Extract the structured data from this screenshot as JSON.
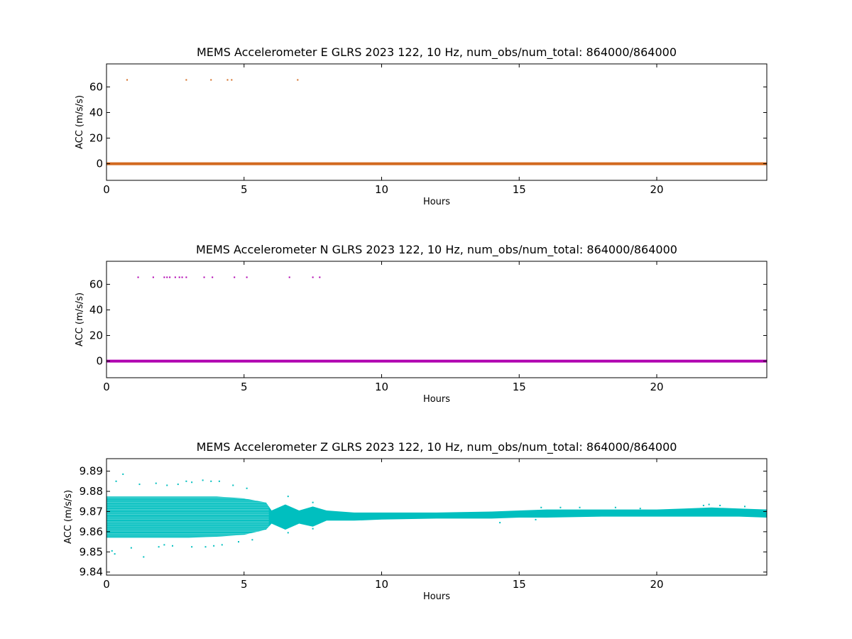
{
  "chart_data": [
    {
      "type": "scatter",
      "title": "MEMS Accelerometer E GLRS 2023 122, 10 Hz, num_obs/num_total: 864000/864000",
      "xlabel": "Hours",
      "ylabel": "ACC (m/s/s)",
      "xlim": [
        0,
        24
      ],
      "ylim": [
        -13,
        78
      ],
      "xticks": [
        0,
        5,
        10,
        15,
        20
      ],
      "yticks": [
        0,
        20,
        40,
        60
      ],
      "color": "#d2691e",
      "series": [
        {
          "baseline_value": 0.0,
          "baseline_x_range": [
            0,
            24
          ],
          "points": [
            [
              0.75,
              65.5
            ],
            [
              2.9,
              65.5
            ],
            [
              3.8,
              65.5
            ],
            [
              4.4,
              65.5
            ],
            [
              4.55,
              65.5
            ],
            [
              6.95,
              65.5
            ]
          ]
        }
      ]
    },
    {
      "type": "scatter",
      "title": "MEMS Accelerometer N GLRS 2023 122, 10 Hz, num_obs/num_total: 864000/864000",
      "xlabel": "Hours",
      "ylabel": "ACC (m/s/s)",
      "xlim": [
        0,
        24
      ],
      "ylim": [
        -13,
        78
      ],
      "xticks": [
        0,
        5,
        10,
        15,
        20
      ],
      "yticks": [
        0,
        20,
        40,
        60
      ],
      "color": "#b000b0",
      "series": [
        {
          "baseline_value": 0.0,
          "baseline_x_range": [
            0,
            24
          ],
          "points": [
            [
              1.15,
              65.5
            ],
            [
              1.7,
              65.5
            ],
            [
              2.1,
              65.5
            ],
            [
              2.2,
              65.5
            ],
            [
              2.3,
              65.5
            ],
            [
              2.5,
              65.5
            ],
            [
              2.65,
              65.5
            ],
            [
              2.75,
              65.5
            ],
            [
              2.9,
              65.5
            ],
            [
              3.55,
              65.5
            ],
            [
              3.85,
              65.5
            ],
            [
              4.65,
              65.5
            ],
            [
              5.1,
              65.5
            ],
            [
              6.65,
              65.5
            ],
            [
              7.5,
              65.5
            ],
            [
              7.75,
              65.5
            ]
          ]
        }
      ]
    },
    {
      "type": "scatter",
      "title": "MEMS Accelerometer Z GLRS 2023 122, 10 Hz, num_obs/num_total: 864000/864000",
      "xlabel": "Hours",
      "ylabel": "ACC (m/s/s)",
      "xlim": [
        0,
        24
      ],
      "ylim": [
        9.8385,
        9.8962
      ],
      "xticks": [
        0,
        5,
        10,
        15,
        20
      ],
      "xtick_labels": [
        "0",
        "5",
        "10",
        "15",
        "20"
      ],
      "yticks": [
        9.84,
        9.85,
        9.86,
        9.87,
        9.88,
        9.89
      ],
      "ytick_labels": [
        "9.84",
        "9.85",
        "9.86",
        "9.87",
        "9.88",
        "9.89"
      ],
      "color": "#00bfbf",
      "envelope": {
        "x": [
          0,
          1,
          2,
          3,
          4,
          5,
          5.8,
          6,
          6.5,
          7,
          7.5,
          8,
          9,
          10,
          12,
          14,
          15,
          16,
          18,
          20,
          21,
          22,
          23,
          24
        ],
        "upper": [
          9.8775,
          9.8775,
          9.8775,
          9.8775,
          9.8775,
          9.8765,
          9.8745,
          9.8705,
          9.8735,
          9.8705,
          9.8725,
          9.8705,
          9.8695,
          9.8695,
          9.8695,
          9.87,
          9.8705,
          9.871,
          9.871,
          9.871,
          9.8715,
          9.872,
          9.8715,
          9.871
        ],
        "lower": [
          9.857,
          9.857,
          9.857,
          9.857,
          9.8575,
          9.8585,
          9.861,
          9.864,
          9.861,
          9.864,
          9.8625,
          9.8655,
          9.8655,
          9.866,
          9.8665,
          9.8665,
          9.867,
          9.867,
          9.8675,
          9.8675,
          9.8675,
          9.8675,
          9.8675,
          9.867
        ]
      },
      "outliers": [
        [
          0.6,
          9.8885
        ],
        [
          0.35,
          9.885
        ],
        [
          1.2,
          9.8835
        ],
        [
          1.8,
          9.884
        ],
        [
          2.2,
          9.883
        ],
        [
          2.9,
          9.885
        ],
        [
          3.5,
          9.8855
        ],
        [
          3.8,
          9.885
        ],
        [
          4.1,
          9.885
        ],
        [
          4.6,
          9.883
        ],
        [
          5.1,
          9.8815
        ],
        [
          2.6,
          9.8835
        ],
        [
          3.1,
          9.8845
        ],
        [
          0.2,
          9.8505
        ],
        [
          0.3,
          9.849
        ],
        [
          1.35,
          9.8475
        ],
        [
          0.9,
          9.852
        ],
        [
          1.9,
          9.8525
        ],
        [
          2.4,
          9.853
        ],
        [
          3.1,
          9.8525
        ],
        [
          3.6,
          9.8525
        ],
        [
          4.2,
          9.8535
        ],
        [
          4.8,
          9.855
        ],
        [
          5.3,
          9.856
        ],
        [
          2.1,
          9.8535
        ],
        [
          3.9,
          9.853
        ],
        [
          6.6,
          9.8775
        ],
        [
          6.6,
          9.8595
        ],
        [
          7.5,
          9.8745
        ],
        [
          7.5,
          9.8615
        ],
        [
          14.3,
          9.8645
        ],
        [
          15.6,
          9.866
        ],
        [
          15.8,
          9.872
        ],
        [
          16.5,
          9.872
        ],
        [
          17.2,
          9.872
        ],
        [
          18.5,
          9.872
        ],
        [
          19.4,
          9.8715
        ],
        [
          21.7,
          9.873
        ],
        [
          21.9,
          9.8735
        ],
        [
          22.3,
          9.873
        ],
        [
          23.2,
          9.8725
        ]
      ]
    }
  ]
}
